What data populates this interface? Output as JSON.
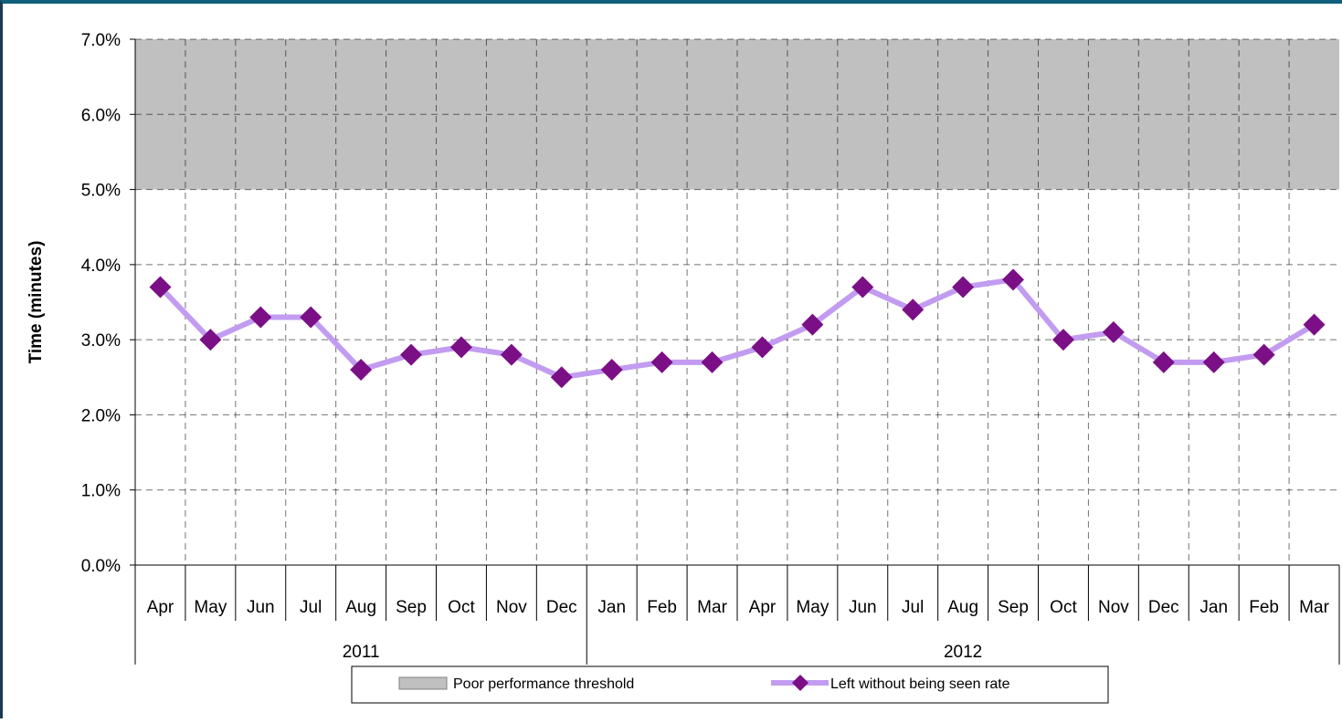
{
  "chart_data": {
    "type": "line",
    "categories": [
      "Apr",
      "May",
      "Jun",
      "Jul",
      "Aug",
      "Sep",
      "Oct",
      "Nov",
      "Dec",
      "Jan",
      "Feb",
      "Mar",
      "Apr",
      "May",
      "Jun",
      "Jul",
      "Aug",
      "Sep",
      "Oct",
      "Nov",
      "Dec",
      "Jan",
      "Feb",
      "Mar"
    ],
    "groups": [
      {
        "label": "2011",
        "span": 9
      },
      {
        "label": "2012",
        "span": 15
      }
    ],
    "series": [
      {
        "name": "Left without being seen rate",
        "values": [
          3.7,
          3.0,
          3.3,
          3.3,
          2.6,
          2.8,
          2.9,
          2.8,
          2.5,
          2.6,
          2.7,
          2.7,
          2.9,
          3.2,
          3.7,
          3.4,
          3.7,
          3.8,
          3.0,
          3.1,
          2.7,
          2.7,
          2.8,
          3.2
        ],
        "color": "#c29cf0",
        "marker_color": "#7b0f86",
        "marker": "diamond"
      }
    ],
    "threshold": {
      "name": "Poor performance threshold",
      "from": 5.0,
      "to": 7.0,
      "color": "#c0c0c0"
    },
    "ylabel": "Time (minutes)",
    "xlabel": "",
    "ylim": [
      0,
      7
    ],
    "yticks": [
      0,
      1,
      2,
      3,
      4,
      5,
      6,
      7
    ],
    "ytick_labels": [
      "0.0%",
      "1.0%",
      "2.0%",
      "3.0%",
      "4.0%",
      "5.0%",
      "6.0%",
      "7.0%"
    ],
    "grid": true,
    "grid_style": "dashed",
    "legend_position": "bottom"
  }
}
